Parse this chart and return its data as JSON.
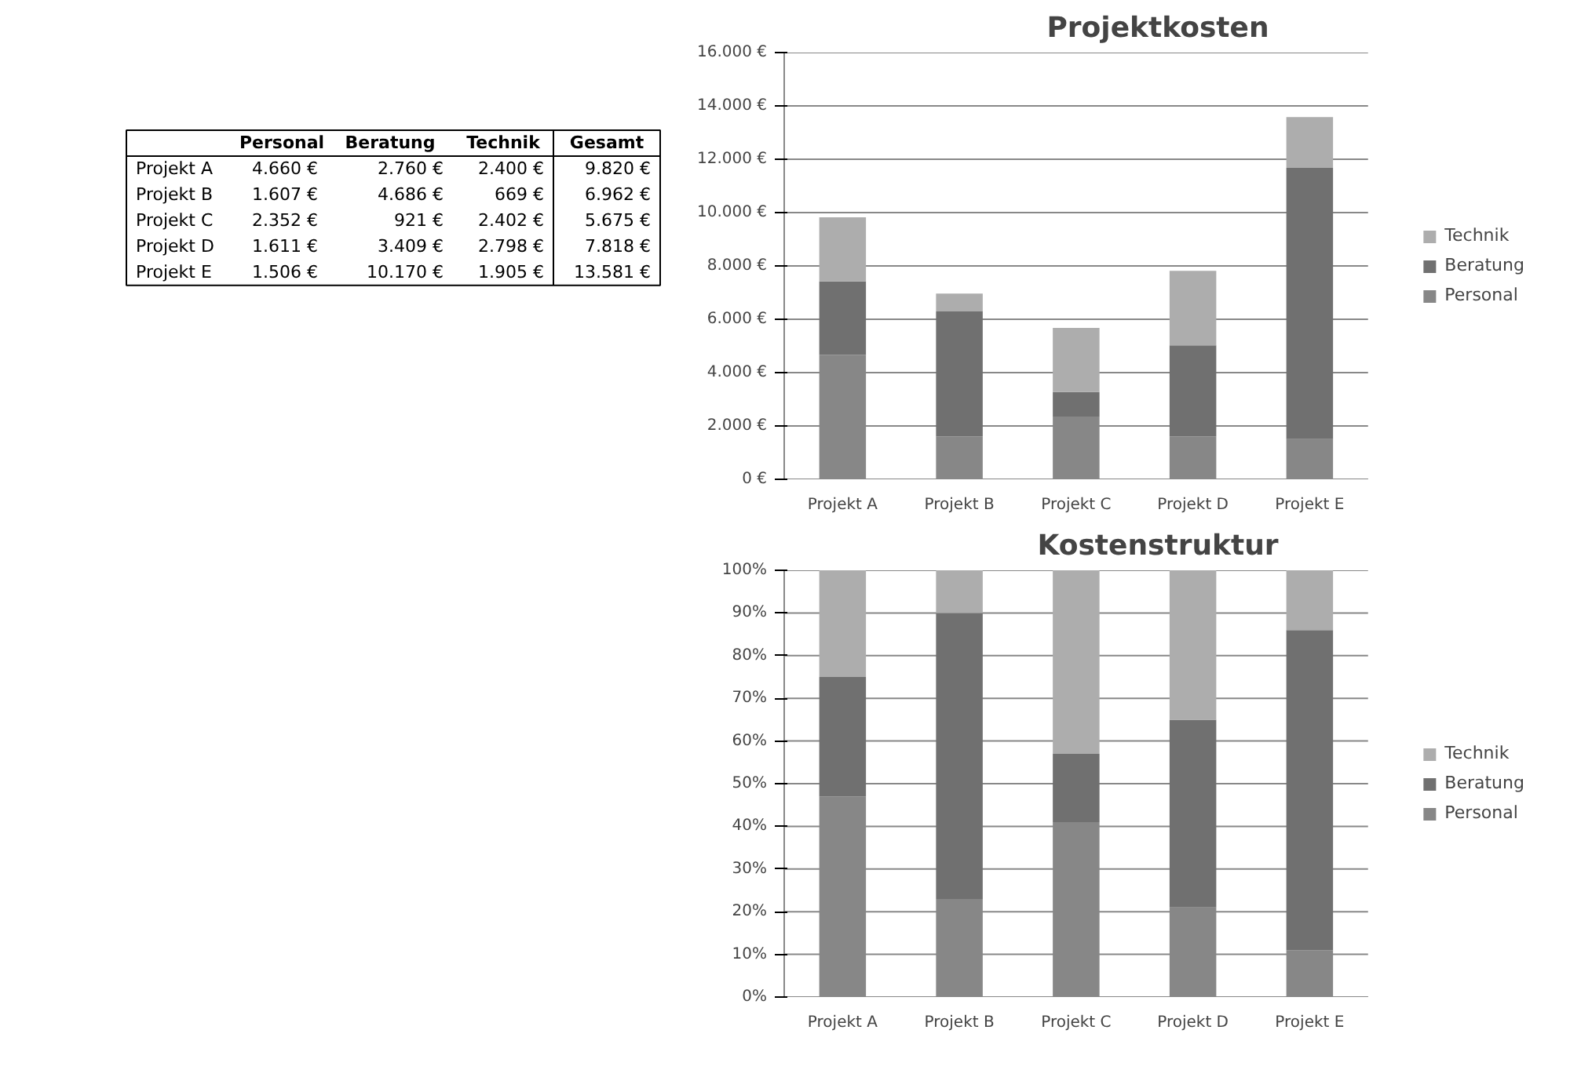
{
  "chart_data": [
    {
      "type": "other",
      "annotations": [
        "Personal",
        "Beratung",
        "Technik",
        "Gesamt",
        "Projekt A",
        "4.660 €",
        "2.760 €",
        "2.400 €",
        "9.820 €",
        "Projekt B",
        "1.607 €",
        "4.686 €",
        "669 €",
        "6.962 €",
        "Projekt C",
        "2.352 €",
        "921 €",
        "2.402 €",
        "5.675 €",
        "Projekt D",
        "1.611 €",
        "3.409 €",
        "2.798 €",
        "7.818 €",
        "Projekt E",
        "1.506 €",
        "10.170 €",
        "1.905 €",
        "13.581 €"
      ]
    },
    {
      "type": "bar",
      "title": "Projektkosten",
      "stacked": true,
      "grid": "y",
      "legend": "right",
      "categories": [
        "Projekt A",
        "Projekt B",
        "Projekt C",
        "Projekt D",
        "Projekt E"
      ],
      "series": [
        {
          "name": "Personal",
          "color": "#878787",
          "values": [
            4660,
            1607,
            2352,
            1611,
            1506
          ]
        },
        {
          "name": "Beratung",
          "color": "#707070",
          "values": [
            2760,
            4686,
            921,
            3409,
            10170
          ]
        },
        {
          "name": "Technik",
          "color": "#adadad",
          "values": [
            2400,
            669,
            2402,
            2798,
            1905
          ]
        }
      ],
      "ylim": [
        0,
        16000
      ],
      "yticks": [
        {
          "value": 0,
          "label": "0 €"
        },
        {
          "value": 2000,
          "label": "2.000 €"
        },
        {
          "value": 4000,
          "label": "4.000 €"
        },
        {
          "value": 6000,
          "label": "6.000 €"
        },
        {
          "value": 8000,
          "label": "8.000 €"
        },
        {
          "value": 10000,
          "label": "10.000 €"
        },
        {
          "value": 12000,
          "label": "12.000 €"
        },
        {
          "value": 14000,
          "label": "14.000 €"
        },
        {
          "value": 16000,
          "label": "16.000 €"
        }
      ]
    },
    {
      "type": "bar",
      "title": "Kostenstruktur",
      "stacked": true,
      "grid": "y",
      "legend": "right",
      "categories": [
        "Projekt A",
        "Projekt B",
        "Projekt C",
        "Projekt D",
        "Projekt E"
      ],
      "series": [
        {
          "name": "Personal",
          "color": "#878787",
          "values": [
            47,
            23,
            41,
            21,
            11
          ]
        },
        {
          "name": "Beratung",
          "color": "#707070",
          "values": [
            28,
            67,
            16,
            44,
            75
          ]
        },
        {
          "name": "Technik",
          "color": "#adadad",
          "values": [
            25,
            10,
            43,
            35,
            14
          ]
        }
      ],
      "ylim": [
        0,
        100
      ],
      "yticks": [
        {
          "value": 0,
          "label": "0%"
        },
        {
          "value": 10,
          "label": "10%"
        },
        {
          "value": 20,
          "label": "20%"
        },
        {
          "value": 30,
          "label": "30%"
        },
        {
          "value": 40,
          "label": "40%"
        },
        {
          "value": 50,
          "label": "50%"
        },
        {
          "value": 60,
          "label": "60%"
        },
        {
          "value": 70,
          "label": "70%"
        },
        {
          "value": 80,
          "label": "80%"
        },
        {
          "value": 90,
          "label": "90%"
        },
        {
          "value": 100,
          "label": "100%"
        }
      ]
    }
  ]
}
